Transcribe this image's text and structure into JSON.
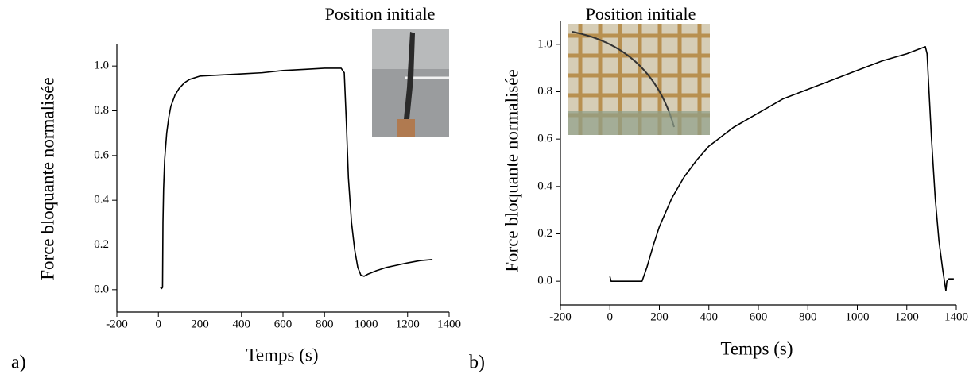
{
  "chart_data": [
    {
      "type": "line",
      "panel_label": "a)",
      "inset_title": "Position initiale",
      "x_label": "Temps (s)",
      "y_label": "Force bloquante normalisée",
      "xlim": [
        -200,
        1400
      ],
      "xticks": [
        -200,
        0,
        200,
        400,
        600,
        800,
        1000,
        1200,
        1400
      ],
      "ylim": [
        -0.1,
        1.1
      ],
      "yticks": [
        {
          "value": 0,
          "label": "0.0"
        },
        {
          "value": 0.2,
          "label": "0.2"
        },
        {
          "value": 0.4,
          "label": "0.4"
        },
        {
          "value": 0.6,
          "label": "0.6"
        },
        {
          "value": 0.8,
          "label": "0.8"
        },
        {
          "value": 1,
          "label": "1.0"
        }
      ],
      "color": "#000000",
      "x": [
        10,
        15,
        20,
        22,
        25,
        30,
        40,
        50,
        60,
        80,
        100,
        125,
        150,
        200,
        300,
        400,
        500,
        600,
        700,
        800,
        880,
        895,
        905,
        915,
        930,
        945,
        960,
        975,
        990,
        1010,
        1050,
        1100,
        1150,
        1200,
        1260,
        1320
      ],
      "values": [
        0.01,
        0.005,
        0.01,
        0.3,
        0.45,
        0.58,
        0.7,
        0.77,
        0.82,
        0.87,
        0.9,
        0.925,
        0.94,
        0.955,
        0.96,
        0.965,
        0.97,
        0.98,
        0.985,
        0.99,
        0.99,
        0.97,
        0.75,
        0.5,
        0.3,
        0.18,
        0.1,
        0.065,
        0.06,
        0.07,
        0.085,
        0.1,
        0.11,
        0.12,
        0.13,
        0.135
      ]
    },
    {
      "type": "line",
      "panel_label": "b)",
      "inset_title": "Position initiale",
      "x_label": "Temps (s)",
      "y_label": "Force bloquante normalisée",
      "xlim": [
        -200,
        1400
      ],
      "xticks": [
        -200,
        0,
        200,
        400,
        600,
        800,
        1000,
        1200,
        1400
      ],
      "ylim": [
        -0.1,
        1.1
      ],
      "yticks": [
        {
          "value": 0,
          "label": "0.0"
        },
        {
          "value": 0.2,
          "label": "0.2"
        },
        {
          "value": 0.4,
          "label": "0.4"
        },
        {
          "value": 0.6,
          "label": "0.6"
        },
        {
          "value": 0.8,
          "label": "0.8"
        },
        {
          "value": 1,
          "label": "1.0"
        }
      ],
      "color": "#000000",
      "x": [
        0,
        5,
        50,
        100,
        130,
        150,
        175,
        200,
        250,
        300,
        350,
        400,
        500,
        600,
        700,
        800,
        900,
        1000,
        1100,
        1200,
        1250,
        1275,
        1282,
        1290,
        1300,
        1315,
        1330,
        1345,
        1358,
        1362,
        1370,
        1390
      ],
      "values": [
        0.02,
        0,
        0,
        0,
        0,
        0.06,
        0.15,
        0.23,
        0.35,
        0.44,
        0.51,
        0.57,
        0.65,
        0.71,
        0.77,
        0.81,
        0.85,
        0.89,
        0.93,
        0.96,
        0.98,
        0.99,
        0.96,
        0.8,
        0.6,
        0.35,
        0.17,
        0.05,
        -0.04,
        0.0,
        0.01,
        0.01
      ]
    }
  ]
}
